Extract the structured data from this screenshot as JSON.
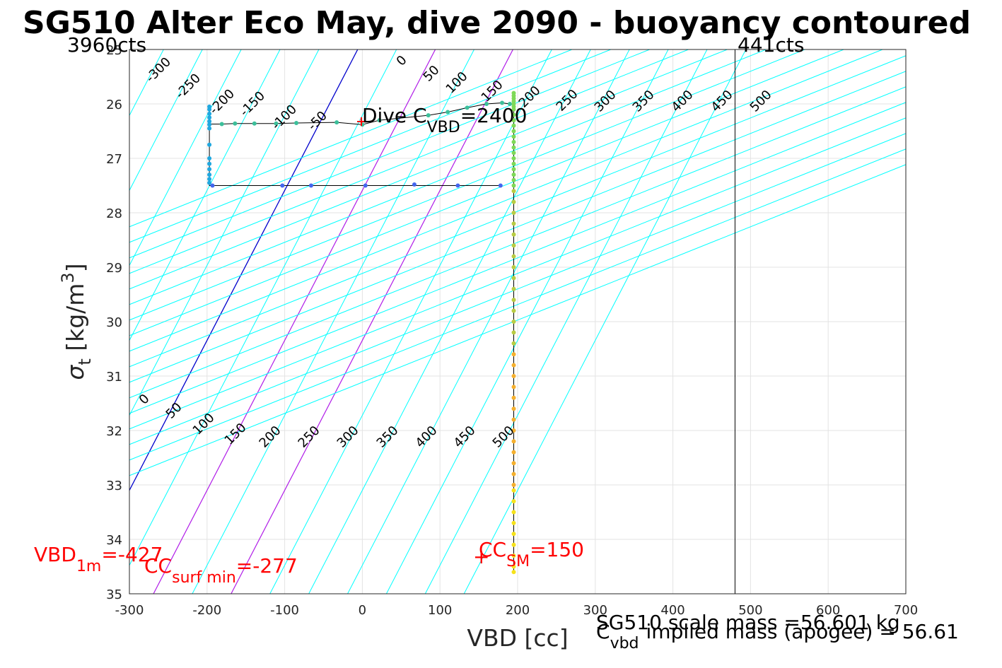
{
  "title": "SG510 Alter Eco May, dive 2090 - buoyancy contoured",
  "chart_data": {
    "type": "scatter",
    "xlabel": "VBD [cc]",
    "ylabel": "σt [kg/m3]",
    "xlim": [
      -300,
      700
    ],
    "ylim": [
      25,
      35
    ],
    "y_reversed": true,
    "grid": true,
    "x_ticks": [
      "-300",
      "-200",
      "-100",
      "0",
      "100",
      "200",
      "300",
      "400",
      "500",
      "600",
      "700"
    ],
    "y_ticks": [
      "25",
      "26",
      "27",
      "28",
      "29",
      "30",
      "31",
      "32",
      "33",
      "34",
      "35"
    ],
    "contour_levels": [
      -300,
      -250,
      -200,
      -150,
      -100,
      -50,
      0,
      50,
      100,
      150,
      200,
      250,
      300,
      350,
      400,
      450,
      500
    ],
    "contour_top_labels": [
      "-300",
      "-250",
      "-200",
      "-150",
      "-100",
      "-50",
      "0",
      "50",
      "100",
      "150",
      "200",
      "250",
      "300",
      "350",
      "400",
      "450",
      "500"
    ],
    "contour_bottom_labels": [
      "0",
      "50",
      "100",
      "150",
      "200",
      "250",
      "300",
      "350",
      "400",
      "450",
      "500"
    ],
    "colors": {
      "contour": "#00ffff",
      "zero_contour": "#0000cc",
      "highlight_contour": "#b01ce8",
      "annotation_red": "#ff0000",
      "track": "#000000",
      "limit_line": "#000000"
    },
    "vertical_lines": [
      {
        "x": 480,
        "label": "441cts"
      },
      {
        "x": -300,
        "label": "3960cts"
      }
    ],
    "dive_point": {
      "x": 0,
      "y": 26.3,
      "label": "Dive C",
      "sub": "VBD",
      "value": "=2400"
    },
    "series": [
      {
        "color": "#4466ee",
        "points": [
          [
            178,
            27.5
          ],
          [
            123,
            27.5
          ],
          [
            67,
            27.48
          ],
          [
            4,
            27.5
          ],
          [
            -66,
            27.5
          ],
          [
            -103,
            27.5
          ],
          [
            -193,
            27.5
          ]
        ]
      },
      {
        "color": "#1fa8e0",
        "points": [
          [
            -197,
            27.45
          ],
          [
            -197,
            27.38
          ],
          [
            -197,
            27.3
          ],
          [
            -197,
            27.2
          ],
          [
            -197,
            27.1
          ],
          [
            -197,
            27.0
          ],
          [
            -197,
            26.75
          ],
          [
            -197,
            26.45
          ],
          [
            -197,
            26.38
          ],
          [
            -197,
            26.32
          ],
          [
            -197,
            26.25
          ],
          [
            -197,
            26.18
          ],
          [
            -197,
            26.1
          ],
          [
            -197,
            26.05
          ]
        ]
      },
      {
        "color": "#3cbf9a",
        "points": [
          [
            -181,
            26.37
          ],
          [
            -164,
            26.36
          ],
          [
            -139,
            26.36
          ],
          [
            -111,
            26.36
          ],
          [
            -85,
            26.35
          ],
          [
            -33,
            26.34
          ],
          [
            0,
            26.38
          ],
          [
            22,
            26.3
          ],
          [
            85,
            26.21
          ],
          [
            110,
            26.15
          ],
          [
            135,
            26.07
          ],
          [
            160,
            26.0
          ],
          [
            180,
            25.98
          ],
          [
            190,
            26.0
          ]
        ]
      },
      {
        "color": "#7ed957",
        "points": [
          [
            195,
            25.8
          ],
          [
            195,
            25.85
          ],
          [
            195,
            25.9
          ],
          [
            195,
            25.95
          ],
          [
            195,
            26.0
          ],
          [
            195,
            26.05
          ],
          [
            195,
            26.1
          ],
          [
            195,
            26.2
          ],
          [
            195,
            26.3
          ],
          [
            195,
            26.4
          ],
          [
            195,
            26.5
          ],
          [
            195,
            26.6
          ],
          [
            195,
            26.7
          ],
          [
            195,
            26.8
          ],
          [
            195,
            26.9
          ],
          [
            195,
            27.0
          ],
          [
            195,
            27.1
          ],
          [
            195,
            27.2
          ],
          [
            195,
            27.3
          ],
          [
            195,
            27.4
          ],
          [
            195,
            27.5
          ]
        ]
      },
      {
        "color": "#b9cc43",
        "points": [
          [
            195,
            27.6
          ],
          [
            195,
            27.8
          ],
          [
            195,
            28.0
          ],
          [
            195,
            28.2
          ],
          [
            195,
            28.4
          ],
          [
            195,
            28.6
          ],
          [
            195,
            28.8
          ],
          [
            195,
            29.0
          ],
          [
            195,
            29.2
          ],
          [
            195,
            29.4
          ],
          [
            195,
            29.6
          ],
          [
            195,
            29.8
          ],
          [
            195,
            30.0
          ],
          [
            195,
            30.2
          ],
          [
            195,
            30.4
          ]
        ]
      },
      {
        "color": "#f5b02e",
        "points": [
          [
            195,
            30.6
          ],
          [
            195,
            30.8
          ],
          [
            195,
            31.0
          ],
          [
            195,
            31.2
          ],
          [
            195,
            31.4
          ],
          [
            195,
            31.6
          ],
          [
            195,
            31.8
          ],
          [
            195,
            32.0
          ],
          [
            195,
            32.2
          ],
          [
            195,
            32.4
          ],
          [
            195,
            32.6
          ],
          [
            195,
            32.8
          ],
          [
            195,
            33.0
          ]
        ]
      },
      {
        "color": "#f6e21a",
        "points": [
          [
            195,
            33.1
          ],
          [
            195,
            33.3
          ],
          [
            195,
            33.5
          ],
          [
            195,
            33.7
          ],
          [
            195,
            33.9
          ],
          [
            195,
            34.1
          ],
          [
            195,
            34.3
          ],
          [
            195,
            34.5
          ],
          [
            195,
            34.6
          ]
        ]
      }
    ],
    "annotations": {
      "vbd_1m": {
        "main": "VBD",
        "sub": "1m",
        "value": "=-427"
      },
      "cc_surf_min": {
        "main": "CC",
        "sub": "surf min",
        "value": "=-277"
      },
      "cc_sm": {
        "main": "CC",
        "sub": "SM",
        "value": "=150",
        "marker": "+"
      },
      "scale_mass": "SG510 scale mass =56.601 kg",
      "implied_mass": {
        "main": "C",
        "sub": "vbd",
        "value": "implied mass (apogee) = 56.61"
      }
    }
  }
}
